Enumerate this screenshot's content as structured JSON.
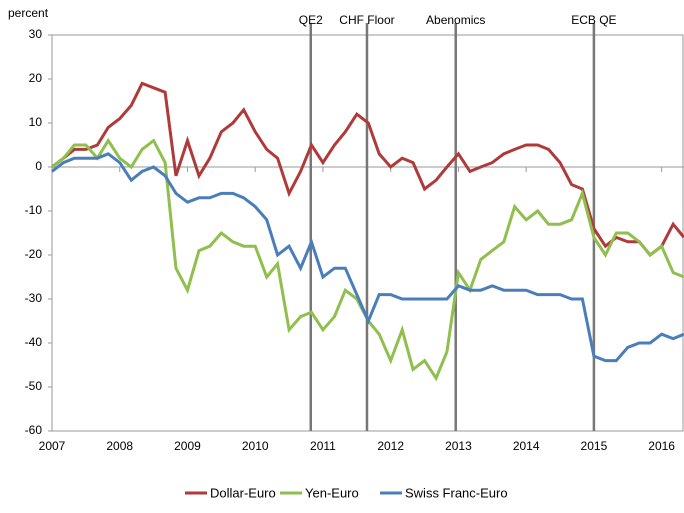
{
  "chart_data": {
    "type": "line",
    "y_label": "percent",
    "x": [
      2007,
      2007.17,
      2007.33,
      2007.5,
      2007.67,
      2007.83,
      2008,
      2008.17,
      2008.33,
      2008.5,
      2008.67,
      2008.83,
      2009,
      2009.17,
      2009.33,
      2009.5,
      2009.67,
      2009.83,
      2010,
      2010.17,
      2010.33,
      2010.5,
      2010.67,
      2010.83,
      2011,
      2011.17,
      2011.33,
      2011.5,
      2011.67,
      2011.83,
      2012,
      2012.17,
      2012.33,
      2012.5,
      2012.67,
      2012.83,
      2013,
      2013.17,
      2013.33,
      2013.5,
      2013.67,
      2013.83,
      2014,
      2014.17,
      2014.33,
      2014.5,
      2014.67,
      2014.83,
      2015,
      2015.17,
      2015.33,
      2015.5,
      2015.67,
      2015.83,
      2016,
      2016.17,
      2016.33
    ],
    "series": [
      {
        "name": "Dollar-Euro",
        "color": "#b03a3a",
        "values": [
          0,
          2,
          4,
          4,
          5,
          9,
          11,
          14,
          19,
          18,
          17,
          -2,
          6,
          -2,
          2,
          8,
          10,
          13,
          8,
          4,
          2,
          -6,
          -1,
          5,
          1,
          5,
          8,
          12,
          10,
          3,
          0,
          2,
          1,
          -5,
          -3,
          0,
          3,
          -1,
          0,
          1,
          3,
          4,
          5,
          5,
          4,
          1,
          -4,
          -5,
          -14,
          -18,
          -16,
          -17,
          -17,
          -20,
          -18,
          -13,
          -16
        ]
      },
      {
        "name": "Yen-Euro",
        "color": "#8fbf4d",
        "values": [
          0,
          2,
          5,
          5,
          2,
          6,
          2,
          0,
          4,
          6,
          1,
          -23,
          -28,
          -19,
          -18,
          -15,
          -17,
          -18,
          -18,
          -25,
          -22,
          -37,
          -34,
          -33,
          -37,
          -34,
          -28,
          -30,
          -35,
          -38,
          -44,
          -37,
          -46,
          -44,
          -48,
          -42,
          -24,
          -28,
          -21,
          -19,
          -17,
          -9,
          -12,
          -10,
          -13,
          -13,
          -12,
          -6,
          -16,
          -20,
          -15,
          -15,
          -17,
          -20,
          -18,
          -24,
          -25
        ]
      },
      {
        "name": "Swiss Franc-Euro",
        "color": "#4a7ebb",
        "values": [
          -1,
          1,
          2,
          2,
          2,
          3,
          1,
          -3,
          -1,
          0,
          -2,
          -6,
          -8,
          -7,
          -7,
          -6,
          -6,
          -7,
          -9,
          -12,
          -20,
          -18,
          -23,
          -17,
          -25,
          -23,
          -23,
          -29,
          -35,
          -29,
          -29,
          -30,
          -30,
          -30,
          -30,
          -30,
          -27,
          -28,
          -28,
          -27,
          -28,
          -28,
          -28,
          -29,
          -29,
          -29,
          -30,
          -30,
          -43,
          -44,
          -44,
          -41,
          -40,
          -40,
          -38,
          -39,
          -38
        ]
      }
    ],
    "xlim": [
      2007,
      2016.33
    ],
    "xticks": [
      2007,
      2008,
      2009,
      2010,
      2011,
      2012,
      2013,
      2014,
      2015,
      2016
    ],
    "ylim": [
      -60,
      30
    ],
    "yticks": [
      -60,
      -50,
      -40,
      -30,
      -20,
      -10,
      0,
      10,
      20,
      30
    ],
    "annotations": [
      {
        "label": "QE2",
        "x": 2010.82
      },
      {
        "label": "CHF Floor",
        "x": 2011.65
      },
      {
        "label": "Abenomics",
        "x": 2012.96
      },
      {
        "label": "ECB QE",
        "x": 2015
      }
    ],
    "legend": "bottom"
  }
}
